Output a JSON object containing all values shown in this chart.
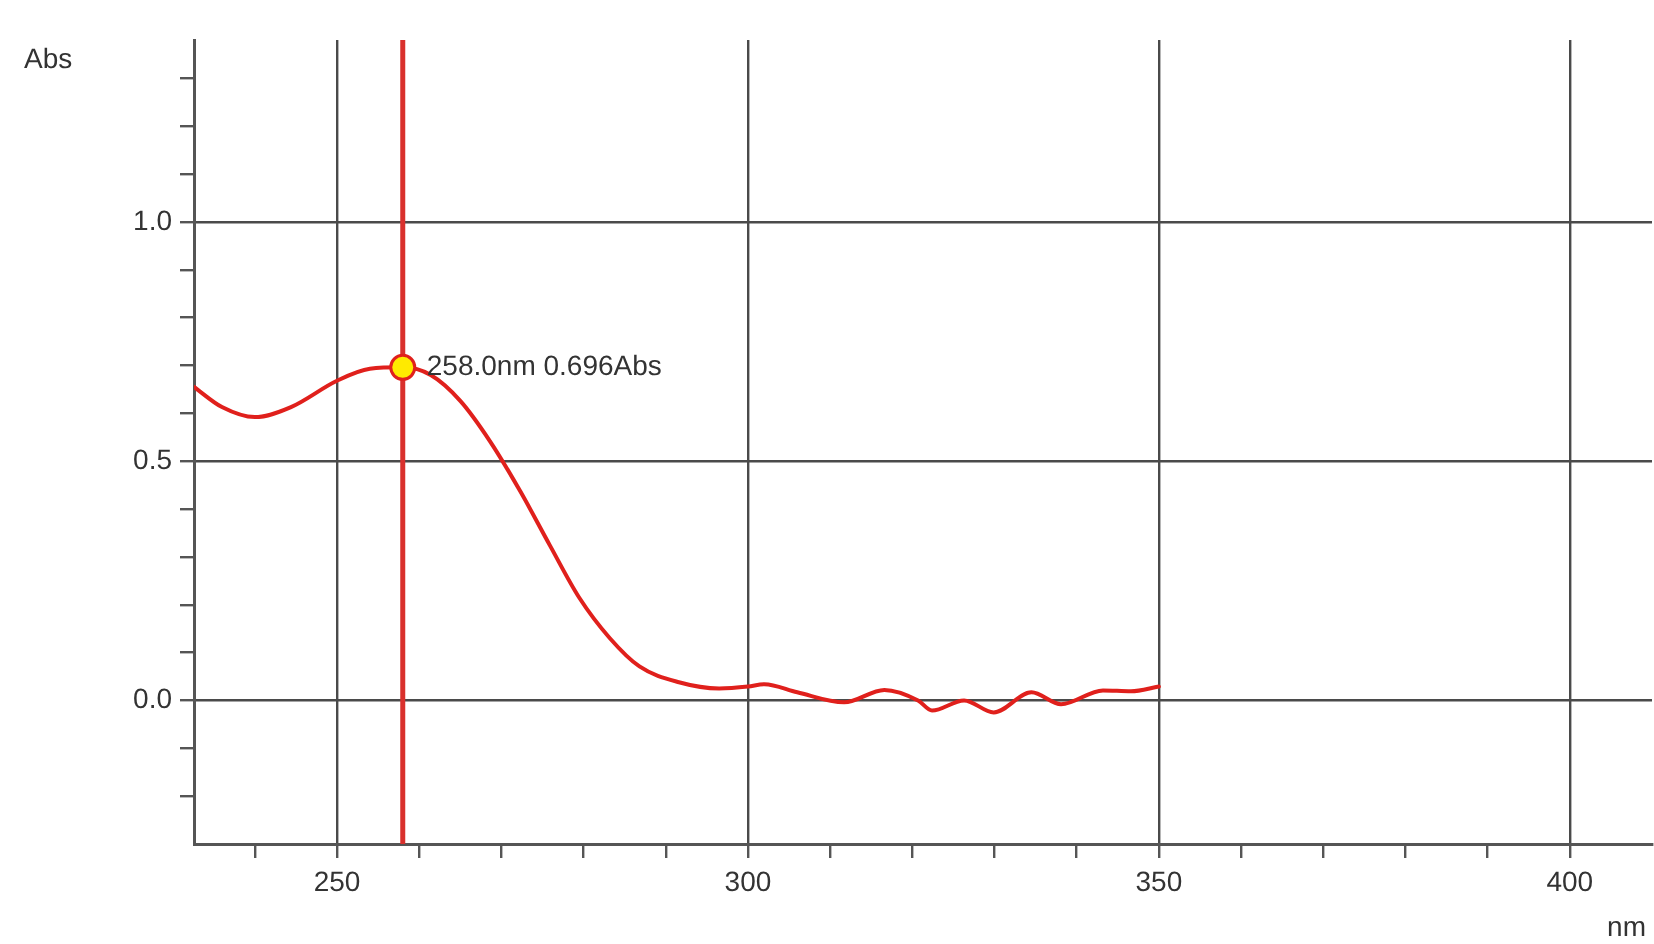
{
  "chart_data": {
    "type": "line",
    "xlabel": "nm",
    "ylabel": "Abs",
    "xlim": [
      232.6,
      410
    ],
    "ylim": [
      -0.3,
      1.38
    ],
    "xticks": [
      {
        "value": 240,
        "label": null
      },
      250,
      {
        "value": 260,
        "label": null
      },
      {
        "value": 270,
        "label": null
      },
      {
        "value": 280,
        "label": null
      },
      {
        "value": 290,
        "label": null
      },
      300,
      {
        "value": 310,
        "label": null
      },
      {
        "value": 320,
        "label": null
      },
      {
        "value": 330,
        "label": null
      },
      {
        "value": 340,
        "label": null
      },
      350,
      {
        "value": 360,
        "label": null
      },
      {
        "value": 370,
        "label": null
      },
      {
        "value": 380,
        "label": null
      },
      {
        "value": 390,
        "label": null
      },
      400
    ],
    "yticks": [
      {
        "value": -0.2,
        "label": null
      },
      {
        "value": -0.1,
        "label": null
      },
      {
        "value": 0,
        "label": "0.0"
      },
      {
        "value": 0.1,
        "label": null
      },
      {
        "value": 0.2,
        "label": null
      },
      {
        "value": 0.3,
        "label": null
      },
      {
        "value": 0.4,
        "label": null
      },
      {
        "value": 0.5,
        "label": "0.5"
      },
      {
        "value": 0.6,
        "label": null
      },
      {
        "value": 0.7,
        "label": null
      },
      {
        "value": 0.8,
        "label": null
      },
      {
        "value": 0.9,
        "label": null
      },
      {
        "value": 1.0,
        "label": "1.0"
      },
      {
        "value": 1.1,
        "label": null
      },
      {
        "value": 1.2,
        "label": null
      },
      {
        "value": 1.3,
        "label": null
      }
    ],
    "grid": true,
    "legend": false,
    "marker": "none",
    "line_style": "solid",
    "x": [
      232.6,
      236,
      240,
      244.4,
      250,
      254,
      258,
      261.4,
      265,
      268.6,
      272.3,
      275.9,
      279.5,
      283.2,
      286.8,
      291.6,
      296.5,
      300,
      302,
      306,
      311.7,
      316.6,
      320.7,
      322.4,
      326.3,
      329.9,
      334.5,
      338.1,
      343.2,
      346.6,
      350
    ],
    "series": [
      {
        "color": "#e0201c",
        "values": [
          0.655,
          0.613,
          0.592,
          0.613,
          0.668,
          0.693,
          0.696,
          0.68,
          0.626,
          0.542,
          0.437,
          0.324,
          0.214,
          0.13,
          0.071,
          0.038,
          0.025,
          0.029,
          0.034,
          0.017,
          -0.004,
          0.022,
          0.0,
          -0.021,
          0.0,
          -0.025,
          0.017,
          -0.008,
          0.021,
          0.019,
          0.029
        ]
      }
    ],
    "ref_lines": [
      {
        "axis": "x",
        "value": 258,
        "color": "#d9302c"
      }
    ],
    "annotations": [
      {
        "text": "258.0nm 0.696Abs",
        "x": 258,
        "y": 0.696
      }
    ]
  }
}
